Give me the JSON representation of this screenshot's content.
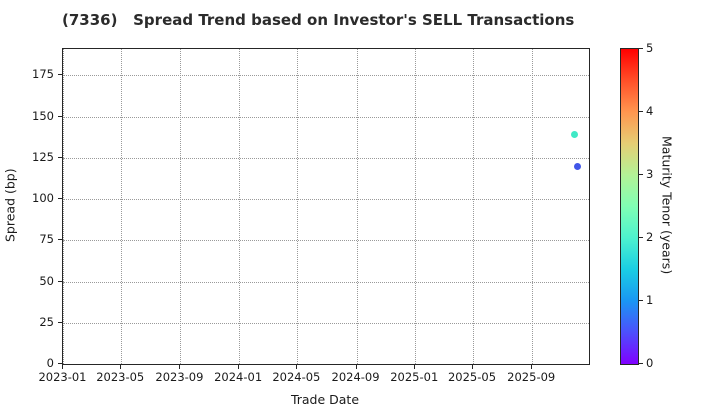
{
  "title": "(7336)   Spread Trend based on Investor's SELL Transactions",
  "colors": {
    "background": "#ffffff",
    "axis": "#262626",
    "text": "#1a1a1a",
    "grid": "#9a9a9a"
  },
  "chart_data": {
    "type": "scatter",
    "title": "(7336)   Spread Trend based on Investor's SELL Transactions",
    "xlabel": "Trade Date",
    "ylabel": "Spread (bp)",
    "x_tick_labels": [
      "2023-01",
      "2023-05",
      "2023-09",
      "2024-01",
      "2024-05",
      "2024-09",
      "2025-01",
      "2025-05",
      "2025-09"
    ],
    "xlim": [
      "2022-12-31",
      "2025-12-28"
    ],
    "y_ticks": [
      0,
      25,
      50,
      75,
      100,
      125,
      150,
      175
    ],
    "ylim": [
      0,
      191
    ],
    "grid": {
      "style": "dotted",
      "on": true
    },
    "points": [
      {
        "date": "2025-11-28",
        "spread_bp": 139,
        "maturity_years": 2.1,
        "color": "#40E9C6"
      },
      {
        "date": "2025-12-05",
        "spread_bp": 120,
        "maturity_years": 0.6,
        "color": "#4156E8"
      }
    ],
    "colorbar": {
      "label": "Maturity Tenor (years)",
      "min": 0,
      "max": 5,
      "ticks": [
        0,
        1,
        2,
        3,
        4,
        5
      ],
      "colormap": "rainbow",
      "gradient_stops": [
        {
          "value": 0.0,
          "color": "#8000FF"
        },
        {
          "value": 0.5,
          "color": "#4D4FFC"
        },
        {
          "value": 1.0,
          "color": "#1A96F3"
        },
        {
          "value": 1.5,
          "color": "#1ACEE3"
        },
        {
          "value": 2.0,
          "color": "#4DF2CE"
        },
        {
          "value": 2.5,
          "color": "#80FFB4"
        },
        {
          "value": 3.0,
          "color": "#B3F296"
        },
        {
          "value": 3.5,
          "color": "#E6CE74"
        },
        {
          "value": 4.0,
          "color": "#FF964F"
        },
        {
          "value": 4.5,
          "color": "#FF4F28"
        },
        {
          "value": 5.0,
          "color": "#FF0000"
        }
      ]
    }
  }
}
